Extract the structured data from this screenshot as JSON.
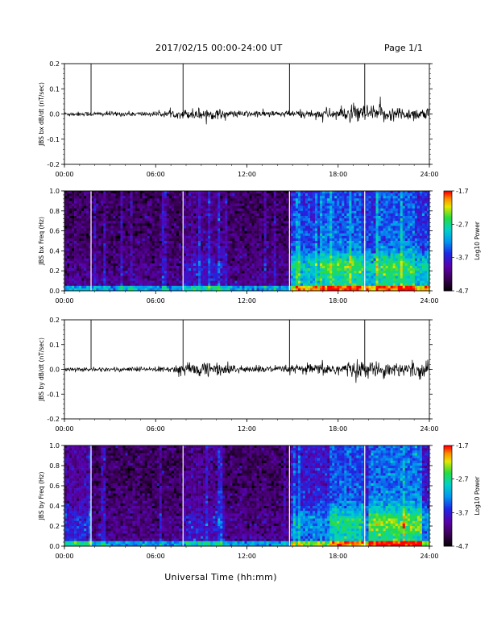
{
  "header": {
    "date_range": "2017/02/15  00:00-24:00 UT",
    "page": "Page 1/1"
  },
  "x_axis_title": "Universal Time (hh:mm)",
  "chart_data": [
    {
      "type": "line",
      "ylabel": "JBS bx dB/dt (nT/sec)",
      "xlim": [
        0,
        24
      ],
      "ylim": [
        -0.2,
        0.2
      ],
      "x_ticks": [
        "00:00",
        "06:00",
        "12:00",
        "18:00",
        "24:00"
      ],
      "y_ticks": [
        "0.2",
        "0.1",
        "0.0",
        "-0.1",
        "-0.2"
      ],
      "event_markers_hours": [
        1.75,
        7.8,
        14.8,
        19.75
      ],
      "amplitude_envelope": {
        "hours": [
          0,
          6,
          7.5,
          9.0,
          10.0,
          11.0,
          14.5,
          15.0,
          17.0,
          18.5,
          19.5,
          20.5,
          22,
          24
        ],
        "values": [
          0.008,
          0.009,
          0.014,
          0.024,
          0.018,
          0.012,
          0.012,
          0.014,
          0.016,
          0.025,
          0.035,
          0.03,
          0.026,
          0.022
        ]
      }
    },
    {
      "type": "heatmap",
      "ylabel": "JBS bx Freq (Hz)",
      "xlim": [
        0,
        24
      ],
      "ylim": [
        0.0,
        1.0
      ],
      "x_ticks": [
        "00:00",
        "06:00",
        "12:00",
        "18:00",
        "24:00"
      ],
      "y_ticks": [
        "1.0",
        "0.8",
        "0.6",
        "0.4",
        "0.2",
        "0.0"
      ],
      "colorbar": {
        "label": "Log10 Power",
        "min": -4.7,
        "max": -1.7,
        "ticks": [
          "-1.7",
          "-2.7",
          "-3.7",
          "-4.7"
        ]
      },
      "event_markers_hours": [
        1.75,
        7.8,
        14.8,
        19.75
      ]
    },
    {
      "type": "line",
      "ylabel": "JBS by dB/dt (nT/sec)",
      "xlim": [
        0,
        24
      ],
      "ylim": [
        -0.2,
        0.2
      ],
      "x_ticks": [
        "00:00",
        "06:00",
        "12:00",
        "18:00",
        "24:00"
      ],
      "y_ticks": [
        "0.2",
        "0.1",
        "0.0",
        "-0.1",
        "-0.2"
      ],
      "event_markers_hours": [
        1.75,
        7.8,
        14.8,
        19.75
      ],
      "amplitude_envelope": {
        "hours": [
          0,
          6,
          7.0,
          9.5,
          10.5,
          12,
          14.5,
          15.5,
          17.0,
          19.0,
          20.5,
          22,
          24
        ],
        "values": [
          0.008,
          0.009,
          0.013,
          0.03,
          0.02,
          0.014,
          0.013,
          0.018,
          0.022,
          0.03,
          0.028,
          0.026,
          0.03
        ]
      }
    },
    {
      "type": "heatmap",
      "ylabel": "JBS by Freq (Hz)",
      "xlim": [
        0,
        24
      ],
      "ylim": [
        0.0,
        1.0
      ],
      "x_ticks": [
        "00:00",
        "06:00",
        "12:00",
        "18:00",
        "24:00"
      ],
      "y_ticks": [
        "1.0",
        "0.8",
        "0.6",
        "0.4",
        "0.2",
        "0.0"
      ],
      "colorbar": {
        "label": "Log10 Power",
        "min": -4.7,
        "max": -1.7,
        "ticks": [
          "-1.7",
          "-2.7",
          "-3.7",
          "-4.7"
        ]
      },
      "event_markers_hours": [
        1.75,
        7.8,
        14.8,
        19.75
      ]
    }
  ]
}
